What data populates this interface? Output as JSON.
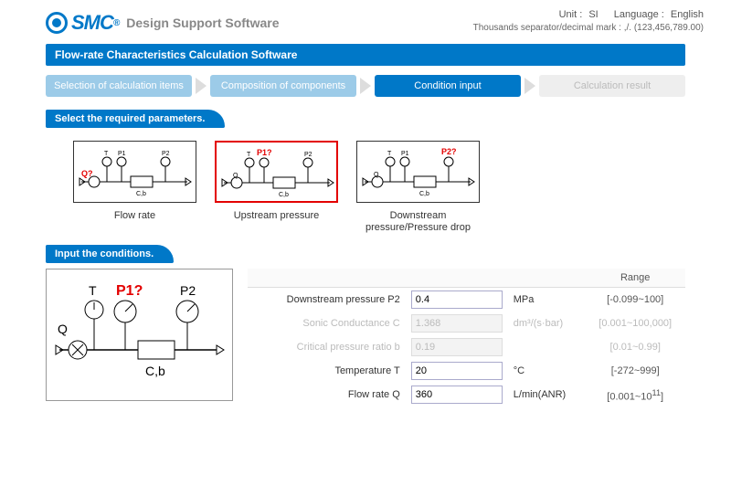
{
  "header": {
    "brand": "SMC",
    "app_title": "Design Support Software",
    "unit_label": "Unit :",
    "unit_value": "SI",
    "lang_label": "Language :",
    "lang_value": "English",
    "format_note": "Thousands separator/decimal mark : ,/. (123,456,789.00)"
  },
  "section_title": "Flow-rate Characteristics Calculation Software",
  "steps": [
    {
      "label": "Selection of calculation items",
      "state": "past"
    },
    {
      "label": "Composition of components",
      "state": "past"
    },
    {
      "label": "Condition input",
      "state": "active"
    },
    {
      "label": "Calculation result",
      "state": "inactive"
    }
  ],
  "select_params_title": "Select the required parameters.",
  "param_cards": [
    {
      "label": "Flow rate",
      "highlight": "Q?",
      "highlight_color": "#e30000",
      "selected": false
    },
    {
      "label": "Upstream pressure",
      "highlight": "P1?",
      "highlight_color": "#e30000",
      "selected": true
    },
    {
      "label": "Downstream pressure/Pressure drop",
      "highlight": "P2?",
      "highlight_color": "#e30000",
      "selected": false
    }
  ],
  "input_conditions_title": "Input the conditions.",
  "diagram": {
    "T_label": "T",
    "P1_label": "P1?",
    "P1_color": "#e30000",
    "P2_label": "P2",
    "Q_label": "Q",
    "Cb_label": "C,b"
  },
  "cond_table": {
    "range_header": "Range",
    "rows": [
      {
        "label": "Downstream pressure P2",
        "value": "0.4",
        "unit": "MPa",
        "range": "[-0.099~100]",
        "disabled": false
      },
      {
        "label": "Sonic Conductance C",
        "value": "1.368",
        "unit": "dm³/(s·bar)",
        "range": "[0.001~100,000]",
        "disabled": true
      },
      {
        "label": "Critical pressure ratio b",
        "value": "0.19",
        "unit": "",
        "range": "[0.01~0.99]",
        "disabled": true
      },
      {
        "label": "Temperature T",
        "value": "20",
        "unit": "°C",
        "range": "[-272~999]",
        "disabled": false
      },
      {
        "label": "Flow rate Q",
        "value": "360",
        "unit": "L/min(ANR)",
        "range_html": "[0.001~10<sup>11</sup>]",
        "disabled": false
      }
    ]
  }
}
